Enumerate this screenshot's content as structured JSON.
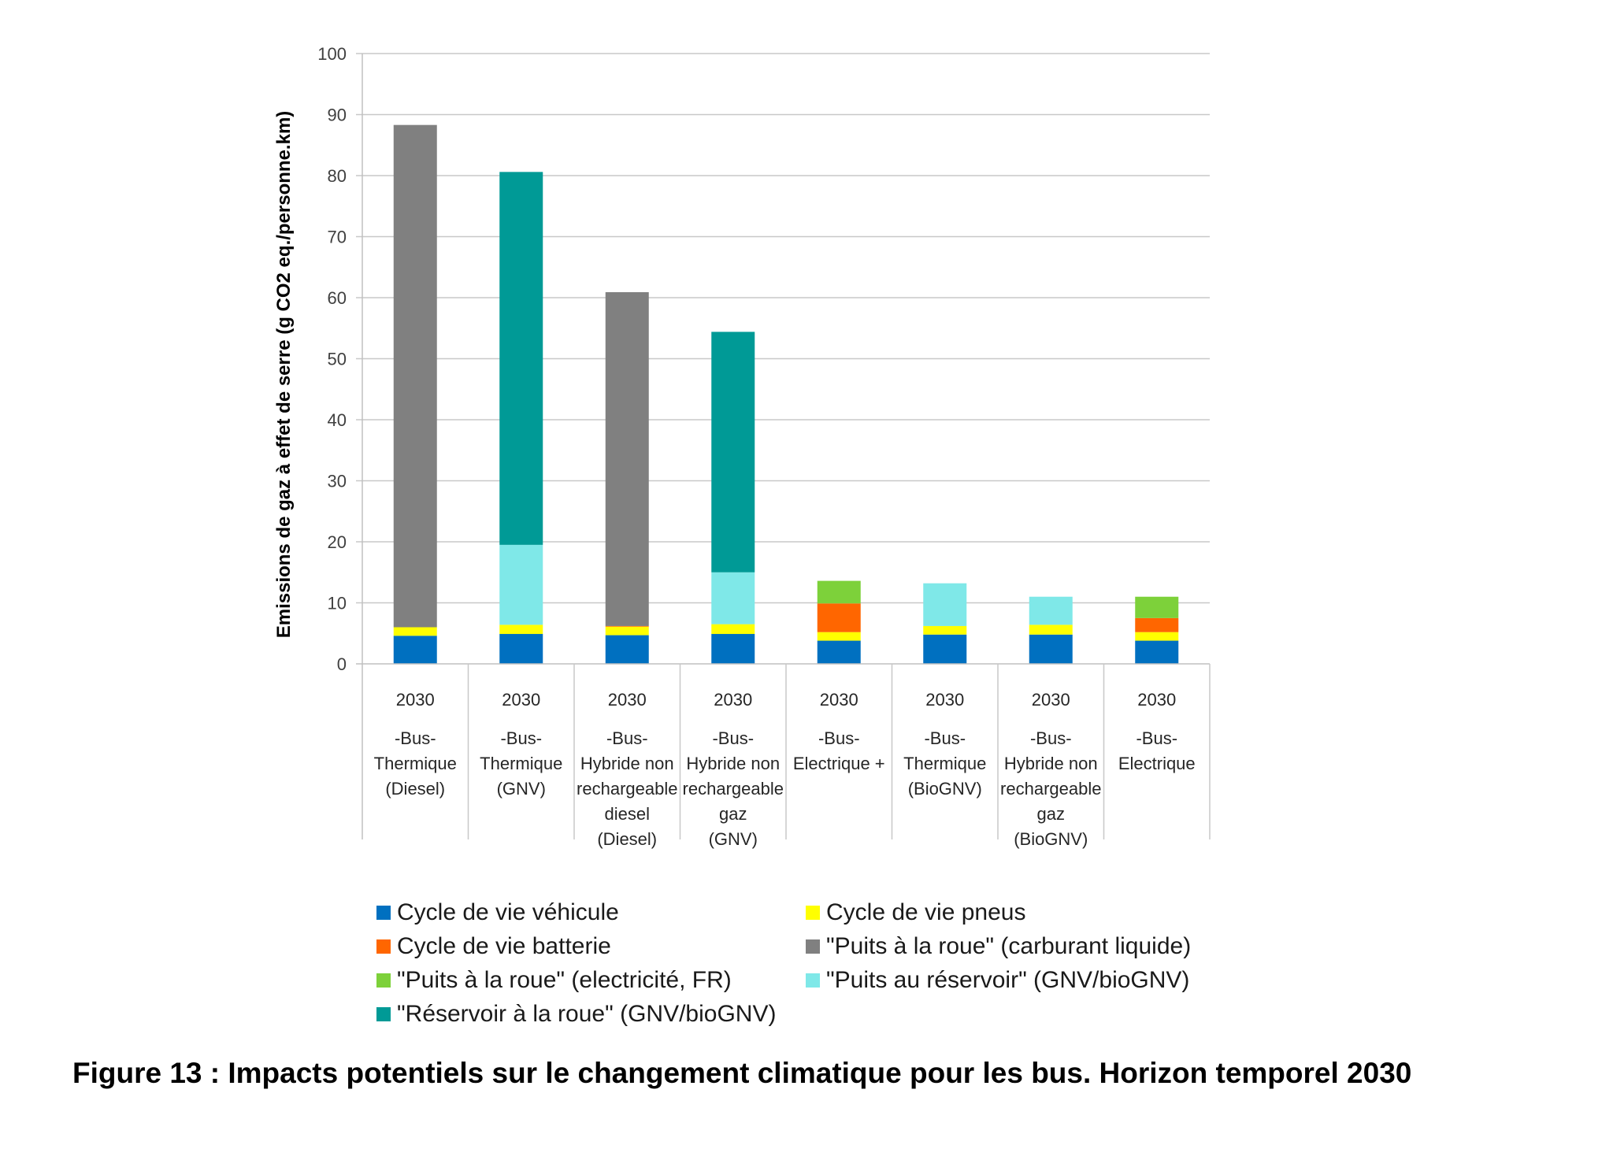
{
  "chart_data": {
    "type": "bar",
    "stacked": true,
    "ylabel": "Emissions de gaz à effet de serre (g CO2 eq./personne.km)",
    "xlabel": "",
    "ylim": [
      0,
      100
    ],
    "yticks": [
      0,
      10,
      20,
      30,
      40,
      50,
      60,
      70,
      80,
      90,
      100
    ],
    "grid": true,
    "legend_position": "bottom",
    "categories": [
      {
        "year": "2030",
        "lines": [
          "-Bus-",
          "Thermique",
          "(Diesel)"
        ]
      },
      {
        "year": "2030",
        "lines": [
          "-Bus-",
          "Thermique",
          "(GNV)"
        ]
      },
      {
        "year": "2030",
        "lines": [
          "-Bus-",
          "Hybride non",
          "rechargeable",
          "diesel",
          "(Diesel)"
        ]
      },
      {
        "year": "2030",
        "lines": [
          "-Bus-",
          "Hybride non",
          "rechargeable",
          "gaz",
          "(GNV)"
        ]
      },
      {
        "year": "2030",
        "lines": [
          "-Bus-",
          "Electrique +"
        ]
      },
      {
        "year": "2030",
        "lines": [
          "-Bus-",
          "Thermique",
          "(BioGNV)"
        ]
      },
      {
        "year": "2030",
        "lines": [
          "-Bus-",
          "Hybride non",
          "rechargeable",
          "gaz",
          "(BioGNV)"
        ]
      },
      {
        "year": "2030",
        "lines": [
          "-Bus-",
          "Electrique"
        ]
      }
    ],
    "series": [
      {
        "name": "Cycle de vie véhicule",
        "color": "#0070C0",
        "values": [
          4.6,
          4.9,
          4.7,
          4.9,
          3.8,
          4.8,
          4.8,
          3.8
        ]
      },
      {
        "name": "Cycle de vie pneus",
        "color": "#FFFF00",
        "values": [
          1.4,
          1.5,
          1.4,
          1.6,
          1.4,
          1.4,
          1.6,
          1.4
        ]
      },
      {
        "name": "Cycle de vie batterie",
        "color": "#FF6600",
        "values": [
          0,
          0,
          0.1,
          0,
          4.7,
          0,
          0,
          2.3
        ]
      },
      {
        "name": "\"Puits à la roue\" (carburant liquide)",
        "color": "#808080",
        "values": [
          82.3,
          0,
          54.7,
          0,
          0,
          0,
          0,
          0
        ]
      },
      {
        "name": "\"Puits à la roue\" (electricité, FR)",
        "color": "#7DD13A",
        "values": [
          0,
          0,
          0,
          0,
          3.7,
          0,
          0,
          3.5
        ]
      },
      {
        "name": "\"Puits au réservoir\" (GNV/bioGNV)",
        "color": "#7FE8E8",
        "values": [
          0,
          13.1,
          0,
          8.5,
          0,
          7.0,
          4.6,
          0
        ]
      },
      {
        "name": "\"Réservoir à la roue\" (GNV/bioGNV)",
        "color": "#009A96",
        "values": [
          0,
          61.1,
          0,
          39.4,
          0,
          0,
          0,
          0
        ]
      }
    ],
    "totals": [
      88.3,
      80.6,
      60.9,
      54.4,
      13.6,
      13.2,
      11.0,
      11.0
    ]
  },
  "legend": [
    {
      "label": "Cycle de vie véhicule",
      "color": "#0070C0"
    },
    {
      "label": "Cycle de vie pneus",
      "color": "#FFFF00"
    },
    {
      "label": "Cycle de vie batterie",
      "color": "#FF6600"
    },
    {
      "label": "\"Puits à la roue\" (carburant liquide)",
      "color": "#808080"
    },
    {
      "label": "\"Puits à la roue\" (electricité, FR)",
      "color": "#7DD13A"
    },
    {
      "label": "\"Puits au réservoir\" (GNV/bioGNV)",
      "color": "#7FE8E8"
    },
    {
      "label": "\"Réservoir à la roue\" (GNV/bioGNV)",
      "color": "#009A96"
    }
  ],
  "caption": "Figure 13 : Impacts potentiels sur le changement climatique pour les bus. Horizon temporel 2030"
}
